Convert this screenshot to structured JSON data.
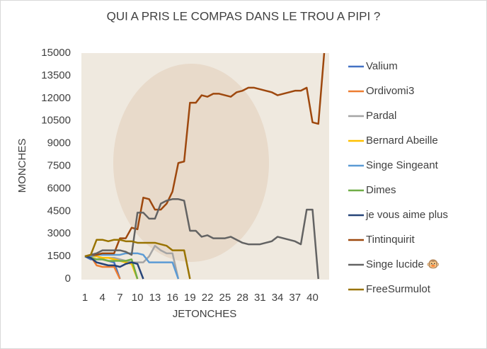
{
  "chart_data": {
    "type": "line",
    "title": "QUI A PRIS LE COMPAS DANS LE TROU A PIPI ?",
    "x_label": "JETONCHES",
    "y_label": "MONCHES",
    "x": [
      1,
      2,
      3,
      4,
      5,
      6,
      7,
      8,
      9,
      10,
      11,
      12,
      13,
      14,
      15,
      16,
      17,
      18,
      19,
      20,
      21,
      22,
      23,
      24,
      25,
      26,
      27,
      28,
      29,
      30,
      31,
      32,
      33,
      34,
      35,
      36,
      37,
      38,
      39,
      40,
      41,
      42
    ],
    "xlim": [
      1,
      42
    ],
    "xticks": [
      1,
      4,
      7,
      10,
      13,
      16,
      19,
      22,
      25,
      28,
      31,
      34,
      37,
      40
    ],
    "ylim": [
      0,
      15000
    ],
    "yticks": [
      0,
      1500,
      3000,
      4500,
      6000,
      7500,
      9000,
      10500,
      12000,
      13500,
      15000
    ],
    "grid": false,
    "legend": "right",
    "series": [
      {
        "name": "Valium",
        "color": "#4472c4",
        "values": [
          1500,
          1300,
          1300,
          1300,
          1200,
          1100,
          0,
          null,
          null,
          null,
          null,
          null,
          null,
          null,
          null,
          null,
          null,
          null,
          null,
          null,
          null,
          null,
          null,
          null,
          null,
          null,
          null,
          null,
          null,
          null,
          null,
          null,
          null,
          null,
          null,
          null,
          null,
          null,
          null,
          null,
          null,
          null
        ]
      },
      {
        "name": "Ordivomi3",
        "color": "#ed7d31",
        "values": [
          1500,
          1500,
          900,
          800,
          800,
          800,
          0,
          null,
          null,
          null,
          null,
          null,
          null,
          null,
          null,
          null,
          null,
          null,
          null,
          null,
          null,
          null,
          null,
          null,
          null,
          null,
          null,
          null,
          null,
          null,
          null,
          null,
          null,
          null,
          null,
          null,
          null,
          null,
          null,
          null,
          null,
          null
        ]
      },
      {
        "name": "Pardal",
        "color": "#a5a5a5",
        "values": [
          1500,
          1400,
          1300,
          1400,
          1400,
          1400,
          1300,
          1200,
          1100,
          1100,
          1100,
          1500,
          2200,
          1900,
          1700,
          1700,
          0,
          null,
          null,
          null,
          null,
          null,
          null,
          null,
          null,
          null,
          null,
          null,
          null,
          null,
          null,
          null,
          null,
          null,
          null,
          null,
          null,
          null,
          null,
          null,
          null,
          null
        ]
      },
      {
        "name": "Bernard Abeille",
        "color": "#ffc000",
        "values": [
          1500,
          1500,
          1500,
          1400,
          1400,
          1300,
          1200,
          1100,
          1000,
          0,
          null,
          null,
          null,
          null,
          null,
          null,
          null,
          null,
          null,
          null,
          null,
          null,
          null,
          null,
          null,
          null,
          null,
          null,
          null,
          null,
          null,
          null,
          null,
          null,
          null,
          null,
          null,
          null,
          null,
          null,
          null,
          null
        ]
      },
      {
        "name": "Singe Singeant",
        "color": "#5b9bd5",
        "values": [
          1500,
          1500,
          1600,
          1600,
          1600,
          1600,
          1600,
          1700,
          1700,
          1700,
          1600,
          1100,
          1100,
          1100,
          1100,
          1100,
          0,
          null,
          null,
          null,
          null,
          null,
          null,
          null,
          null,
          null,
          null,
          null,
          null,
          null,
          null,
          null,
          null,
          null,
          null,
          null,
          null,
          null,
          null,
          null,
          null,
          null
        ]
      },
      {
        "name": "Dimes",
        "color": "#70ad47",
        "values": [
          1500,
          1400,
          1300,
          1300,
          1200,
          1200,
          1200,
          1200,
          1300,
          0,
          null,
          null,
          null,
          null,
          null,
          null,
          null,
          null,
          null,
          null,
          null,
          null,
          null,
          null,
          null,
          null,
          null,
          null,
          null,
          null,
          null,
          null,
          null,
          null,
          null,
          null,
          null,
          null,
          null,
          null,
          null,
          null
        ]
      },
      {
        "name": "je vous aime plus",
        "color": "#264478",
        "values": [
          1500,
          1400,
          1100,
          1000,
          900,
          900,
          800,
          1000,
          1100,
          1000,
          0,
          null,
          null,
          null,
          null,
          null,
          null,
          null,
          null,
          null,
          null,
          null,
          null,
          null,
          null,
          null,
          null,
          null,
          null,
          null,
          null,
          null,
          null,
          null,
          null,
          null,
          null,
          null,
          null,
          null,
          null,
          null
        ]
      },
      {
        "name": "Tintinquirit",
        "color": "#9e480e",
        "values": [
          1500,
          1600,
          1600,
          1700,
          1700,
          1700,
          2700,
          2700,
          3400,
          3300,
          5400,
          5300,
          4600,
          4600,
          5000,
          5800,
          7700,
          7800,
          11700,
          11700,
          12200,
          12100,
          12300,
          12300,
          12200,
          12100,
          12400,
          12500,
          12700,
          12700,
          12600,
          12500,
          12400,
          12200,
          12300,
          12400,
          12500,
          12500,
          12700,
          10400,
          10300,
          15000
        ]
      },
      {
        "name": "Singe lucide 🐵",
        "color": "#636363",
        "values": [
          1500,
          1600,
          1700,
          1900,
          1900,
          1900,
          1900,
          1800,
          1600,
          4400,
          4400,
          4000,
          4000,
          5000,
          5200,
          5300,
          5300,
          5200,
          3200,
          3200,
          2800,
          2900,
          2700,
          2700,
          2700,
          2800,
          2600,
          2400,
          2300,
          2300,
          2300,
          2400,
          2500,
          2800,
          2700,
          2600,
          2500,
          2300,
          4600,
          4600,
          0,
          null
        ]
      },
      {
        "name": "FreeSurmulot",
        "color": "#997300",
        "values": [
          1500,
          1600,
          2600,
          2600,
          2500,
          2600,
          2600,
          2500,
          2500,
          2400,
          2400,
          2400,
          2400,
          2300,
          2200,
          1900,
          1900,
          1900,
          0,
          null,
          null,
          null,
          null,
          null,
          null,
          null,
          null,
          null,
          null,
          null,
          null,
          null,
          null,
          null,
          null,
          null,
          null,
          null,
          null,
          null,
          null,
          null
        ]
      }
    ]
  }
}
